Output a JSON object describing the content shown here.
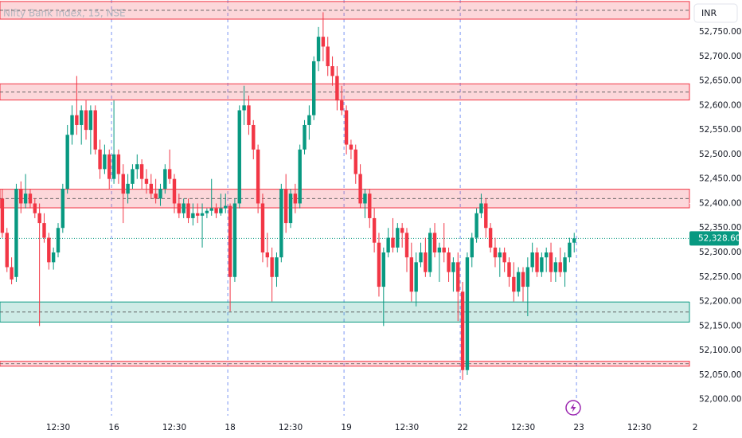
{
  "chart_data": {
    "type": "candlestick",
    "title": "Nifty Bank Index, 15, NSE",
    "currency": "INR",
    "up_color": "#089981",
    "down_color": "#f23645",
    "x": [
      0,
      1,
      2,
      3,
      4,
      5,
      6,
      7,
      8,
      9,
      10,
      11,
      12,
      13,
      14,
      15,
      16,
      17,
      18,
      19,
      20,
      21,
      22,
      23,
      24,
      25,
      26,
      27,
      28,
      29,
      30,
      31,
      32,
      33,
      34,
      35,
      36,
      37,
      38,
      39,
      40,
      41,
      42,
      43,
      44,
      45,
      46,
      47,
      48,
      49,
      50,
      51,
      52,
      53,
      54,
      55,
      56,
      57,
      58,
      59,
      60,
      61,
      62,
      63,
      64,
      65,
      66,
      67,
      68,
      69,
      70,
      71,
      72,
      73,
      74,
      75,
      76,
      77,
      78,
      79,
      80,
      81,
      82,
      83,
      84,
      85,
      86,
      87,
      88,
      89,
      90,
      91,
      92,
      93,
      94,
      95,
      96,
      97,
      98,
      99,
      100,
      101,
      102,
      103,
      104,
      105,
      106,
      107,
      108,
      109,
      110,
      111,
      112,
      113,
      114,
      115,
      116,
      117,
      118,
      119,
      120,
      121,
      122,
      123
    ],
    "open": [
      52410,
      52340,
      52270,
      52250,
      52430,
      52400,
      52420,
      52400,
      52380,
      52360,
      52330,
      52280,
      52300,
      52350,
      52430,
      52540,
      52580,
      52560,
      52590,
      52550,
      52590,
      52510,
      52470,
      52500,
      52450,
      52500,
      52460,
      52420,
      52440,
      52470,
      52480,
      52450,
      52440,
      52420,
      52410,
      52430,
      52470,
      52450,
      52400,
      52380,
      52400,
      52370,
      52380,
      52375,
      52380,
      52385,
      52390,
      52380,
      52390,
      52395,
      52250,
      52400,
      52590,
      52600,
      52560,
      52510,
      52400,
      52300,
      52290,
      52250,
      52290,
      52430,
      52360,
      52420,
      52400,
      52510,
      52560,
      52580,
      52690,
      52740,
      52720,
      52680,
      52660,
      52610,
      52590,
      52520,
      52510,
      52460,
      52400,
      52420,
      52370,
      52320,
      52230,
      52300,
      52330,
      52310,
      52350,
      52340,
      52290,
      52220,
      52280,
      52300,
      52260,
      52340,
      52300,
      52310,
      52300,
      52260,
      52280,
      52220,
      52060,
      52290,
      52330,
      52380,
      52400,
      52350,
      52310,
      52290,
      52300,
      52280,
      52250,
      52220,
      52260,
      52230,
      52270,
      52300,
      52260,
      52290,
      52300,
      52260,
      52280,
      52260,
      52290,
      52320
    ],
    "high": [
      52430,
      52350,
      52290,
      52440,
      52445,
      52460,
      52430,
      52410,
      52400,
      52380,
      52340,
      52310,
      52360,
      52440,
      52560,
      52600,
      52660,
      52600,
      52610,
      52600,
      52600,
      52530,
      52520,
      52510,
      52610,
      52510,
      52480,
      52460,
      52480,
      52500,
      52490,
      52470,
      52460,
      52450,
      52440,
      52480,
      52510,
      52460,
      52420,
      52410,
      52410,
      52400,
      52400,
      52400,
      52390,
      52450,
      52400,
      52420,
      52420,
      52400,
      52410,
      52600,
      52640,
      52620,
      52570,
      52520,
      52420,
      52340,
      52310,
      52300,
      52440,
      52460,
      52430,
      52440,
      52520,
      52570,
      52600,
      52700,
      52760,
      52790,
      52740,
      52700,
      52680,
      52640,
      52600,
      52530,
      52520,
      52480,
      52430,
      52430,
      52390,
      52340,
      52310,
      52350,
      52370,
      52360,
      52360,
      52350,
      52320,
      52300,
      52320,
      52330,
      52350,
      52360,
      52320,
      52360,
      52310,
      52290,
      52300,
      52240,
      52300,
      52340,
      52390,
      52420,
      52410,
      52360,
      52330,
      52310,
      52310,
      52290,
      52280,
      52270,
      52270,
      52290,
      52320,
      52310,
      52300,
      52310,
      52320,
      52290,
      52310,
      52300,
      52330,
      52340
    ],
    "low": [
      52330,
      52260,
      52235,
      52240,
      52380,
      52390,
      52390,
      52370,
      52150,
      52320,
      52265,
      52265,
      52290,
      52340,
      52420,
      52520,
      52540,
      52520,
      52530,
      52500,
      52500,
      52450,
      52460,
      52430,
      52440,
      52440,
      52360,
      52400,
      52430,
      52450,
      52430,
      52420,
      52410,
      52400,
      52395,
      52420,
      52440,
      52380,
      52370,
      52370,
      52360,
      52355,
      52360,
      52310,
      52370,
      52375,
      52370,
      52375,
      52380,
      52180,
      52240,
      52390,
      52560,
      52540,
      52490,
      52380,
      52280,
      52270,
      52200,
      52230,
      52280,
      52340,
      52350,
      52380,
      52390,
      52500,
      52530,
      52570,
      52670,
      52690,
      52660,
      52640,
      52590,
      52580,
      52500,
      52490,
      52440,
      52390,
      52370,
      52350,
      52300,
      52210,
      52150,
      52290,
      52300,
      52300,
      52310,
      52260,
      52200,
      52190,
      52270,
      52250,
      52250,
      52290,
      52240,
      52280,
      52240,
      52220,
      52160,
      52040,
      52050,
      52270,
      52320,
      52370,
      52330,
      52300,
      52270,
      52250,
      52260,
      52230,
      52200,
      52210,
      52200,
      52170,
      52260,
      52250,
      52250,
      52260,
      52240,
      52240,
      52250,
      52230,
      52280,
      52300
    ],
    "close": [
      52340,
      52270,
      52245,
      52430,
      52400,
      52420,
      52400,
      52380,
      52360,
      52330,
      52280,
      52300,
      52350,
      52430,
      52540,
      52580,
      52560,
      52590,
      52550,
      52590,
      52510,
      52470,
      52500,
      52450,
      52500,
      52460,
      52420,
      52440,
      52470,
      52480,
      52450,
      52440,
      52420,
      52410,
      52430,
      52470,
      52450,
      52400,
      52380,
      52400,
      52370,
      52380,
      52375,
      52380,
      52385,
      52390,
      52380,
      52390,
      52395,
      52250,
      52400,
      52590,
      52600,
      52560,
      52510,
      52400,
      52300,
      52290,
      52250,
      52290,
      52430,
      52360,
      52420,
      52400,
      52510,
      52560,
      52580,
      52690,
      52740,
      52720,
      52680,
      52660,
      52610,
      52590,
      52520,
      52510,
      52460,
      52400,
      52420,
      52370,
      52320,
      52230,
      52300,
      52330,
      52310,
      52350,
      52340,
      52290,
      52220,
      52280,
      52300,
      52260,
      52340,
      52300,
      52310,
      52300,
      52260,
      52280,
      52220,
      52060,
      52290,
      52330,
      52380,
      52400,
      52350,
      52310,
      52290,
      52300,
      52280,
      52250,
      52220,
      52260,
      52230,
      52270,
      52300,
      52260,
      52290,
      52300,
      52260,
      52280,
      52260,
      52290,
      52320,
      52328.6
    ],
    "last_price": {
      "value": 52328.6,
      "label": "52,328.60"
    },
    "zones": [
      {
        "low": 52776,
        "high": 52812,
        "color": "#f23645"
      },
      {
        "low": 52611,
        "high": 52644,
        "color": "#f23645"
      },
      {
        "low": 52391,
        "high": 52429,
        "color": "#f23645"
      },
      {
        "low": 52158,
        "high": 52199,
        "color": "#089981"
      },
      {
        "low": 52068,
        "high": 52078,
        "color": "#f23645"
      }
    ],
    "xlim": [
      -0.5,
      149.5
    ],
    "xticks": [
      {
        "value": 12,
        "label": "12:30"
      },
      {
        "value": 24,
        "label": "16"
      },
      {
        "value": 37,
        "label": "12:30"
      },
      {
        "value": 49,
        "label": "18"
      },
      {
        "value": 62,
        "label": "12:30"
      },
      {
        "value": 74,
        "label": "19"
      },
      {
        "value": 87,
        "label": "12:30"
      },
      {
        "value": 99,
        "label": "22"
      },
      {
        "value": 112,
        "label": "12:30"
      },
      {
        "value": 124,
        "label": "23"
      },
      {
        "value": 137,
        "label": "12:30"
      },
      {
        "value": 149,
        "label": "2"
      }
    ],
    "ylim": [
      51967,
      52815
    ],
    "yticks": [
      {
        "value": 52000,
        "label": "52,000.00"
      },
      {
        "value": 52050,
        "label": "52,050.00"
      },
      {
        "value": 52100,
        "label": "52,100.00"
      },
      {
        "value": 52150,
        "label": "52,150.00"
      },
      {
        "value": 52200,
        "label": "52,200.00"
      },
      {
        "value": 52250,
        "label": "52,250.00"
      },
      {
        "value": 52300,
        "label": "52,300.00"
      },
      {
        "value": 52350,
        "label": "52,350.00"
      },
      {
        "value": 52400,
        "label": "52,400.00"
      },
      {
        "value": 52450,
        "label": "52,450.00"
      },
      {
        "value": 52500,
        "label": "52,500.00"
      },
      {
        "value": 52550,
        "label": "52,550.00"
      },
      {
        "value": 52600,
        "label": "52,600.00"
      },
      {
        "value": 52650,
        "label": "52,650.00"
      },
      {
        "value": 52700,
        "label": "52,700.00"
      },
      {
        "value": 52750,
        "label": "52,750.00"
      }
    ]
  }
}
